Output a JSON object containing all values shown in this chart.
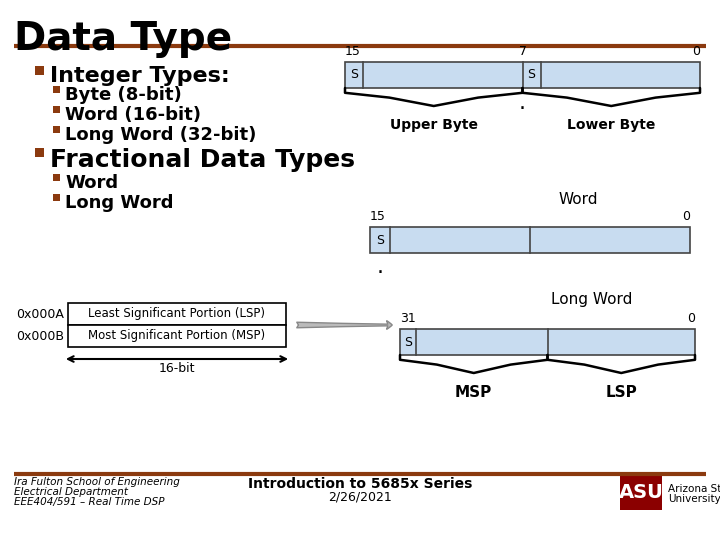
{
  "title": "Data Type",
  "title_color": "#000000",
  "title_fontsize": 28,
  "header_line_color": "#8B3A0F",
  "background_color": "#FFFFFF",
  "bullet_color": "#8B3A0F",
  "text_color": "#000000",
  "light_blue": "#C8DCF0",
  "box_edge_color": "#444444",
  "integer_types_label": "Integer Types:",
  "bullet1": "Byte (8-bit)",
  "bullet2": "Word (16-bit)",
  "bullet3": "Long Word (32-bit)",
  "fractional_label": "Fractional Data Types",
  "frac_bullet1": "Word",
  "frac_bullet2": "Long Word",
  "footer_left1": "Ira Fulton School of Engineering",
  "footer_left2": "Electrical Department",
  "footer_left3": "EEE404/591 – Real Time DSP",
  "footer_center1": "Introduction to 5685x Series",
  "footer_center2": "2/26/2021",
  "addr_a": "0x000A",
  "addr_b": "0x000B",
  "lsp_label": "Least Significant Portion (LSP)",
  "msp_label": "Most Significant Portion (MSP)",
  "bit16": "16-bit",
  "long_word": "Long Word",
  "word_label": "Word",
  "upper_byte": "Upper Byte",
  "lower_byte": "Lower Byte",
  "msp": "MSP",
  "lsp": "LSP"
}
